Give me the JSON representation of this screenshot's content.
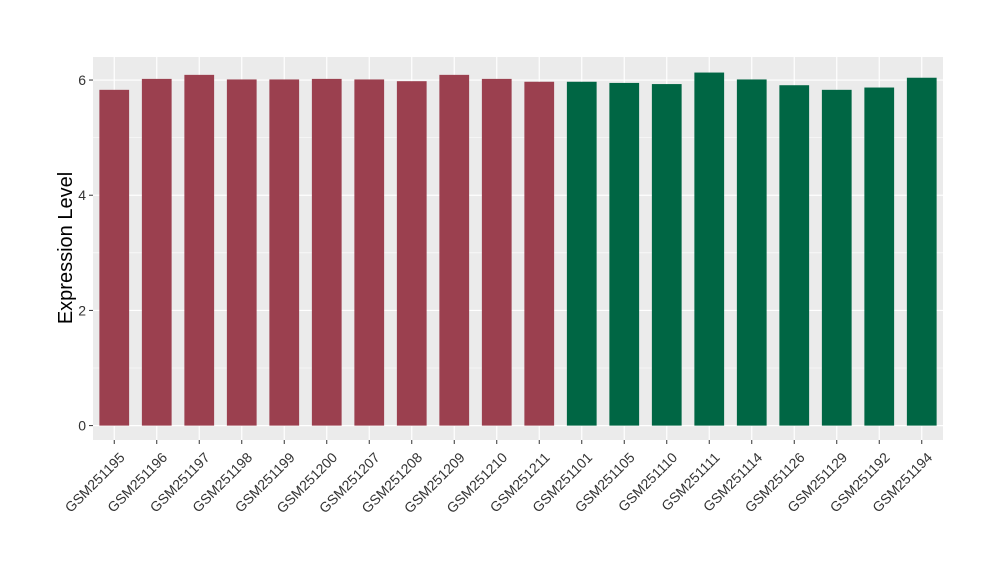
{
  "chart_data": {
    "type": "bar",
    "title": "",
    "xlabel": "",
    "ylabel": "Expression Level",
    "ylim": [
      -0.25,
      6.4
    ],
    "yticks": [
      0,
      2,
      4,
      6
    ],
    "grid": true,
    "colors": {
      "panel_background": "#ebebeb",
      "gridline": "#ffffff",
      "group_a": "#9b404f",
      "group_b": "#006644"
    },
    "categories": [
      "GSM251195",
      "GSM251196",
      "GSM251197",
      "GSM251198",
      "GSM251199",
      "GSM251200",
      "GSM251207",
      "GSM251208",
      "GSM251209",
      "GSM251210",
      "GSM251211",
      "GSM251101",
      "GSM251105",
      "GSM251110",
      "GSM251111",
      "GSM251114",
      "GSM251126",
      "GSM251129",
      "GSM251192",
      "GSM251194"
    ],
    "values": [
      5.83,
      6.02,
      6.09,
      6.01,
      6.01,
      6.02,
      6.01,
      5.98,
      6.09,
      6.02,
      5.97,
      5.97,
      5.95,
      5.93,
      6.13,
      6.01,
      5.91,
      5.83,
      5.87,
      6.04
    ],
    "bar_group": [
      "a",
      "a",
      "a",
      "a",
      "a",
      "a",
      "a",
      "a",
      "a",
      "a",
      "a",
      "b",
      "b",
      "b",
      "b",
      "b",
      "b",
      "b",
      "b",
      "b"
    ]
  }
}
